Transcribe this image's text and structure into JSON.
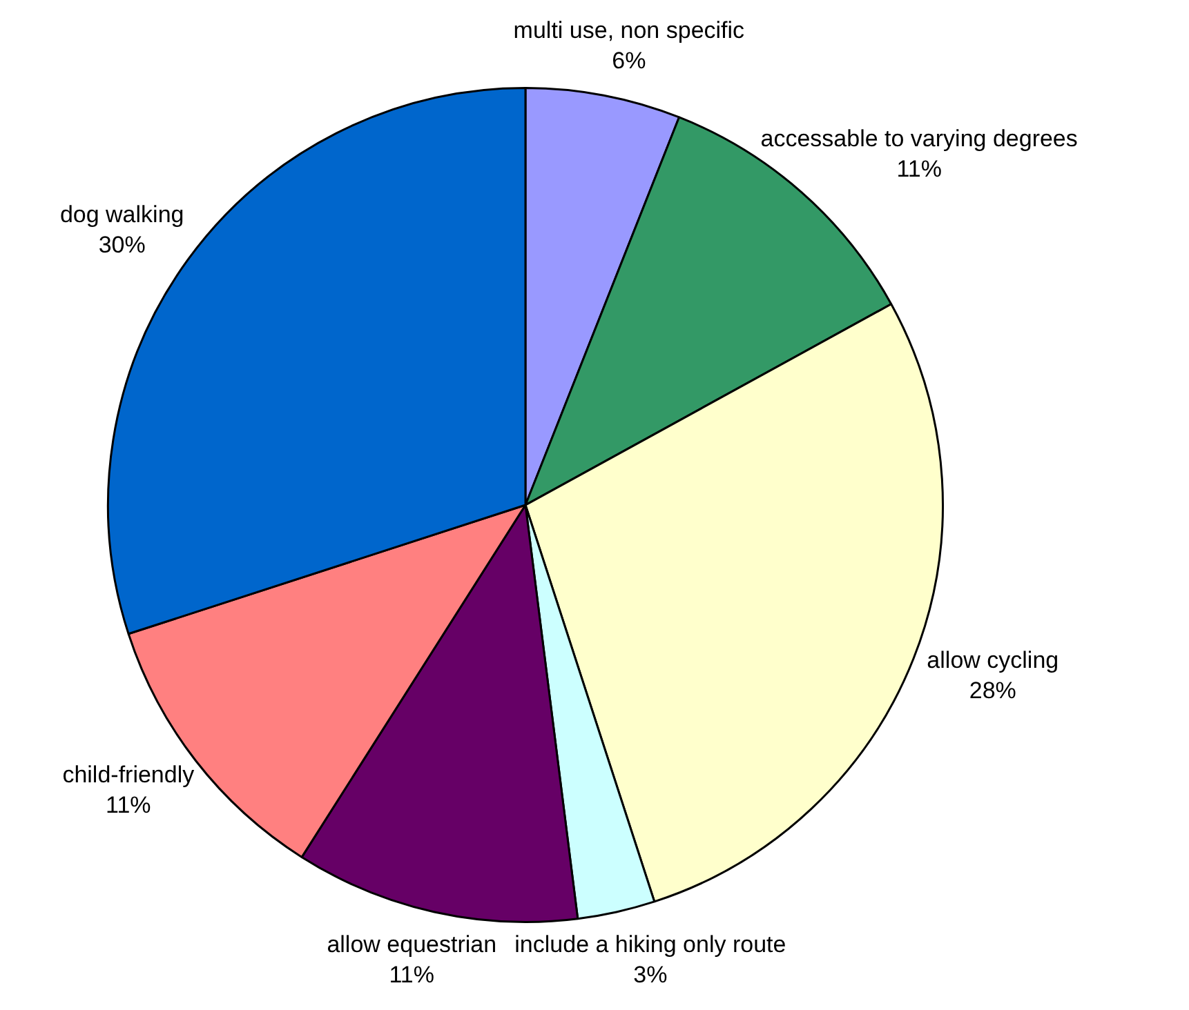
{
  "chart_data": {
    "type": "pie",
    "categories": [
      "multi use, non specific",
      "accessable to varying degrees",
      "allow cycling",
      "include a hiking only route",
      "allow equestrian",
      "child-friendly",
      "dog walking"
    ],
    "values": [
      6,
      11,
      28,
      3,
      11,
      11,
      30
    ],
    "colors": [
      "#9999ff",
      "#339966",
      "#ffffcc",
      "#ccffff",
      "#660066",
      "#ff8080",
      "#0066cc"
    ],
    "value_labels": [
      "6%",
      "11%",
      "28%",
      "3%",
      "11%",
      "11%",
      "30%"
    ],
    "legend": false
  }
}
